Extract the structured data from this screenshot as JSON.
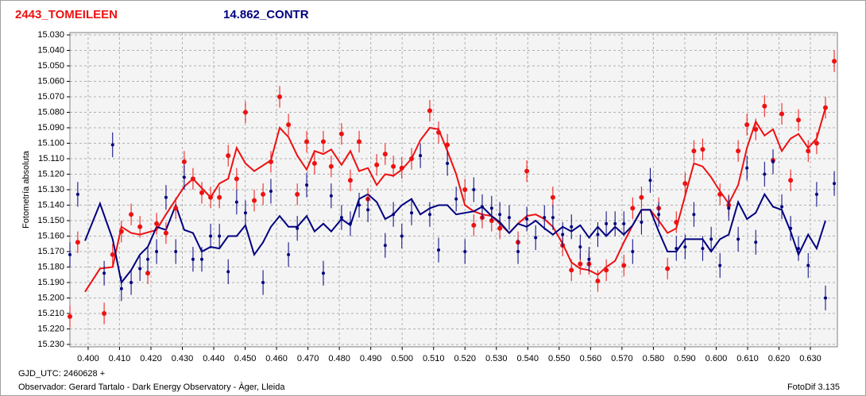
{
  "chart_data": {
    "type": "photometry",
    "y_label": "Fotometría absoluta",
    "x_label": "GJD_UTC: 2460628 +",
    "observer": "Observador: Gerard Tartalo - Dark Energy Observatory - Àger, Lleida",
    "software": "FotoDif 3.135",
    "grid": true,
    "y_inverted": true,
    "xlim": [
      0.3942,
      0.6386
    ],
    "ylim": [
      15.03,
      15.23
    ],
    "xticks": [
      {
        "value": 0.4,
        "label": "0.400"
      },
      {
        "value": 0.41,
        "label": "0.410"
      },
      {
        "value": 0.42,
        "label": "0.420"
      },
      {
        "value": 0.43,
        "label": "0.430"
      },
      {
        "value": 0.44,
        "label": "0.440"
      },
      {
        "value": 0.45,
        "label": "0.450"
      },
      {
        "value": 0.46,
        "label": "0.460"
      },
      {
        "value": 0.47,
        "label": "0.470"
      },
      {
        "value": 0.48,
        "label": "0.480"
      },
      {
        "value": 0.49,
        "label": "0.490"
      },
      {
        "value": 0.5,
        "label": "0.500"
      },
      {
        "value": 0.51,
        "label": "0.510"
      },
      {
        "value": 0.52,
        "label": "0.520"
      },
      {
        "value": 0.53,
        "label": "0.530"
      },
      {
        "value": 0.54,
        "label": "0.540"
      },
      {
        "value": 0.55,
        "label": "0.550"
      },
      {
        "value": 0.56,
        "label": "0.560"
      },
      {
        "value": 0.57,
        "label": "0.570"
      },
      {
        "value": 0.58,
        "label": "0.580"
      },
      {
        "value": 0.59,
        "label": "0.590"
      },
      {
        "value": 0.6,
        "label": "0.600"
      },
      {
        "value": 0.61,
        "label": "0.610"
      },
      {
        "value": 0.62,
        "label": "0.620"
      },
      {
        "value": 0.63,
        "label": "0.630"
      }
    ],
    "yticks": [
      {
        "value": 15.03,
        "label": "15.030"
      },
      {
        "value": 15.04,
        "label": "15.040"
      },
      {
        "value": 15.05,
        "label": "15.050"
      },
      {
        "value": 15.06,
        "label": "15.060"
      },
      {
        "value": 15.07,
        "label": "15.070"
      },
      {
        "value": 15.08,
        "label": "15.080"
      },
      {
        "value": 15.09,
        "label": "15.090"
      },
      {
        "value": 15.1,
        "label": "15.100"
      },
      {
        "value": 15.11,
        "label": "15.110"
      },
      {
        "value": 15.12,
        "label": "15.120"
      },
      {
        "value": 15.13,
        "label": "15.130"
      },
      {
        "value": 15.14,
        "label": "15.140"
      },
      {
        "value": 15.15,
        "label": "15.150"
      },
      {
        "value": 15.16,
        "label": "15.160"
      },
      {
        "value": 15.17,
        "label": "15.170"
      },
      {
        "value": 15.18,
        "label": "15.180"
      },
      {
        "value": 15.19,
        "label": "15.190"
      },
      {
        "value": 15.2,
        "label": "15.200"
      },
      {
        "value": 15.21,
        "label": "15.210"
      },
      {
        "value": 15.22,
        "label": "15.220"
      },
      {
        "value": 15.23,
        "label": "15.230"
      }
    ],
    "series": [
      {
        "name": "2443_TOMEILEEN",
        "color": "#ee1111",
        "error": 0.007,
        "x": [
          0.3942,
          0.3967,
          0.4051,
          0.4078,
          0.4106,
          0.4137,
          0.4165,
          0.419,
          0.4218,
          0.4248,
          0.4279,
          0.4306,
          0.4334,
          0.4362,
          0.439,
          0.4418,
          0.4446,
          0.4473,
          0.4501,
          0.4529,
          0.4557,
          0.4582,
          0.461,
          0.4638,
          0.4666,
          0.4696,
          0.4721,
          0.4749,
          0.4774,
          0.4807,
          0.4835,
          0.4863,
          0.4891,
          0.4919,
          0.4946,
          0.4972,
          0.4999,
          0.503,
          0.5088,
          0.5116,
          0.5144,
          0.52,
          0.5228,
          0.5255,
          0.5285,
          0.5311,
          0.5369,
          0.5397,
          0.548,
          0.5511,
          0.5539,
          0.5567,
          0.5595,
          0.5623,
          0.565,
          0.5706,
          0.5734,
          0.5762,
          0.5817,
          0.5845,
          0.5873,
          0.5901,
          0.5929,
          0.5957,
          0.6012,
          0.604,
          0.607,
          0.6098,
          0.6126,
          0.6154,
          0.6181,
          0.6209,
          0.6237,
          0.6262,
          0.6293,
          0.632,
          0.6348,
          0.6376
        ],
        "values": [
          15.212,
          15.164,
          15.21,
          15.172,
          15.157,
          15.146,
          15.154,
          15.184,
          15.152,
          15.158,
          15.142,
          15.112,
          15.123,
          15.132,
          15.135,
          15.135,
          15.108,
          15.123,
          15.08,
          15.137,
          15.133,
          15.112,
          15.07,
          15.088,
          15.133,
          15.099,
          15.113,
          15.099,
          15.115,
          15.094,
          15.124,
          15.099,
          15.136,
          15.114,
          15.107,
          15.115,
          15.116,
          15.11,
          15.079,
          15.093,
          15.101,
          15.13,
          15.153,
          15.148,
          15.15,
          15.155,
          15.164,
          15.118,
          15.135,
          15.166,
          15.182,
          15.178,
          15.178,
          15.189,
          15.182,
          15.179,
          15.142,
          15.135,
          15.142,
          15.181,
          15.151,
          15.126,
          15.105,
          15.104,
          15.133,
          15.14,
          15.105,
          15.088,
          15.091,
          15.076,
          15.111,
          15.081,
          15.124,
          15.085,
          15.105,
          15.1,
          15.077,
          15.047
        ],
        "line_x": [
          0.399,
          0.4038,
          0.4078,
          0.4106,
          0.4137,
          0.4165,
          0.4218,
          0.4248,
          0.4306,
          0.4334,
          0.4362,
          0.439,
          0.4418,
          0.4446,
          0.4473,
          0.4501,
          0.4529,
          0.4582,
          0.461,
          0.4638,
          0.4666,
          0.4696,
          0.4721,
          0.4749,
          0.4774,
          0.4807,
          0.4835,
          0.4863,
          0.4891,
          0.4919,
          0.4946,
          0.4972,
          0.4999,
          0.503,
          0.5058,
          0.5088,
          0.5116,
          0.5144,
          0.5172,
          0.52,
          0.5228,
          0.5255,
          0.5285,
          0.5311,
          0.5341,
          0.5369,
          0.5397,
          0.5425,
          0.5453,
          0.548,
          0.5511,
          0.5539,
          0.5567,
          0.5595,
          0.5623,
          0.565,
          0.5678,
          0.5706,
          0.5734,
          0.5762,
          0.579,
          0.5817,
          0.5845,
          0.5873,
          0.5901,
          0.5929,
          0.5957,
          0.5984,
          0.6012,
          0.604,
          0.607,
          0.6098,
          0.6126,
          0.6154,
          0.6181,
          0.6209,
          0.6237,
          0.6262,
          0.6293,
          0.632,
          0.6348
        ],
        "line_values": [
          15.196,
          15.181,
          15.18,
          15.154,
          15.158,
          15.159,
          15.156,
          15.146,
          15.128,
          15.123,
          15.129,
          15.135,
          15.126,
          15.123,
          15.103,
          15.113,
          15.118,
          15.111,
          15.09,
          15.096,
          15.108,
          15.117,
          15.105,
          15.107,
          15.104,
          15.114,
          15.105,
          15.118,
          15.116,
          15.127,
          15.12,
          15.121,
          15.117,
          15.11,
          15.098,
          15.09,
          15.091,
          15.105,
          15.12,
          15.14,
          15.144,
          15.146,
          15.147,
          15.152,
          15.158,
          15.152,
          15.147,
          15.146,
          15.149,
          15.154,
          15.165,
          15.177,
          15.181,
          15.182,
          15.185,
          15.18,
          15.176,
          15.164,
          15.153,
          15.143,
          15.143,
          15.15,
          15.158,
          15.155,
          15.134,
          15.113,
          15.115,
          15.122,
          15.131,
          15.139,
          15.127,
          15.103,
          15.086,
          15.095,
          15.091,
          15.105,
          15.097,
          15.094,
          15.103,
          15.097,
          15.077
        ]
      },
      {
        "name": "14.862_CONTR",
        "color": "#000080",
        "error": 0.008,
        "x": [
          0.3942,
          0.3967,
          0.4051,
          0.4078,
          0.4106,
          0.4137,
          0.4165,
          0.419,
          0.4218,
          0.4248,
          0.4279,
          0.4306,
          0.4334,
          0.4362,
          0.439,
          0.4418,
          0.4446,
          0.4473,
          0.4501,
          0.4557,
          0.4582,
          0.4638,
          0.4666,
          0.4696,
          0.4749,
          0.4774,
          0.4807,
          0.4835,
          0.4863,
          0.4891,
          0.4946,
          0.4972,
          0.4999,
          0.503,
          0.5058,
          0.5088,
          0.5116,
          0.5144,
          0.5172,
          0.52,
          0.5228,
          0.5255,
          0.5285,
          0.5311,
          0.5341,
          0.5369,
          0.5397,
          0.5425,
          0.5453,
          0.548,
          0.5511,
          0.5539,
          0.5567,
          0.5595,
          0.5623,
          0.565,
          0.5678,
          0.5706,
          0.5734,
          0.5762,
          0.579,
          0.5817,
          0.5873,
          0.5901,
          0.5929,
          0.5957,
          0.5984,
          0.6012,
          0.604,
          0.607,
          0.6098,
          0.6126,
          0.6154,
          0.6181,
          0.6209,
          0.6237,
          0.6262,
          0.6293,
          0.632,
          0.6348,
          0.6376
        ],
        "values": [
          15.172,
          15.133,
          15.184,
          15.101,
          15.194,
          15.19,
          15.181,
          15.175,
          15.17,
          15.135,
          15.17,
          15.122,
          15.175,
          15.175,
          15.16,
          15.16,
          15.183,
          15.138,
          15.145,
          15.19,
          15.131,
          15.172,
          15.155,
          15.127,
          15.184,
          15.134,
          15.148,
          15.152,
          15.14,
          15.143,
          15.166,
          15.146,
          15.16,
          15.145,
          15.108,
          15.146,
          15.169,
          15.113,
          15.136,
          15.17,
          15.13,
          15.141,
          15.142,
          15.146,
          15.148,
          15.17,
          15.149,
          15.161,
          15.148,
          15.148,
          15.159,
          15.154,
          15.167,
          15.175,
          15.159,
          15.152,
          15.152,
          15.152,
          15.17,
          15.151,
          15.124,
          15.146,
          15.168,
          15.167,
          15.146,
          15.168,
          15.162,
          15.179,
          15.142,
          15.162,
          15.116,
          15.164,
          15.12,
          15.112,
          15.141,
          15.155,
          15.168,
          15.179,
          15.133,
          15.2,
          15.126
        ],
        "line_x": [
          0.399,
          0.4038,
          0.4078,
          0.4106,
          0.4137,
          0.4165,
          0.419,
          0.4218,
          0.4248,
          0.4279,
          0.4306,
          0.4334,
          0.4362,
          0.439,
          0.4418,
          0.4446,
          0.4473,
          0.4501,
          0.4529,
          0.4557,
          0.4582,
          0.461,
          0.4638,
          0.4666,
          0.4696,
          0.4721,
          0.4749,
          0.4774,
          0.4807,
          0.4835,
          0.4863,
          0.4891,
          0.4919,
          0.4946,
          0.4972,
          0.4999,
          0.503,
          0.5058,
          0.5088,
          0.5116,
          0.5144,
          0.5172,
          0.52,
          0.5228,
          0.5255,
          0.5285,
          0.5311,
          0.5341,
          0.5369,
          0.5397,
          0.5425,
          0.5453,
          0.548,
          0.5511,
          0.5539,
          0.5567,
          0.5595,
          0.5623,
          0.565,
          0.5678,
          0.5706,
          0.5734,
          0.5762,
          0.579,
          0.5817,
          0.5845,
          0.5873,
          0.5901,
          0.5929,
          0.5957,
          0.5984,
          0.6012,
          0.604,
          0.607,
          0.6098,
          0.6126,
          0.6154,
          0.6181,
          0.6209,
          0.6237,
          0.6262,
          0.6293,
          0.632,
          0.6348
        ],
        "line_values": [
          15.163,
          15.139,
          15.162,
          15.19,
          15.182,
          15.172,
          15.167,
          15.154,
          15.156,
          15.14,
          15.156,
          15.158,
          15.17,
          15.167,
          15.168,
          15.16,
          15.16,
          15.153,
          15.172,
          15.164,
          15.154,
          15.147,
          15.154,
          15.154,
          15.147,
          15.157,
          15.152,
          15.157,
          15.149,
          15.153,
          15.136,
          15.133,
          15.138,
          15.149,
          15.146,
          15.14,
          15.136,
          15.146,
          15.142,
          15.14,
          15.14,
          15.146,
          15.145,
          15.144,
          15.141,
          15.147,
          15.151,
          15.158,
          15.152,
          15.154,
          15.15,
          15.155,
          15.159,
          15.154,
          15.157,
          15.153,
          15.161,
          15.154,
          15.16,
          15.154,
          15.159,
          15.153,
          15.143,
          15.143,
          15.157,
          15.17,
          15.17,
          15.162,
          15.162,
          15.162,
          15.17,
          15.162,
          15.159,
          15.138,
          15.149,
          15.145,
          15.133,
          15.141,
          15.143,
          15.157,
          15.172,
          15.159,
          15.168,
          15.15
        ]
      }
    ]
  }
}
